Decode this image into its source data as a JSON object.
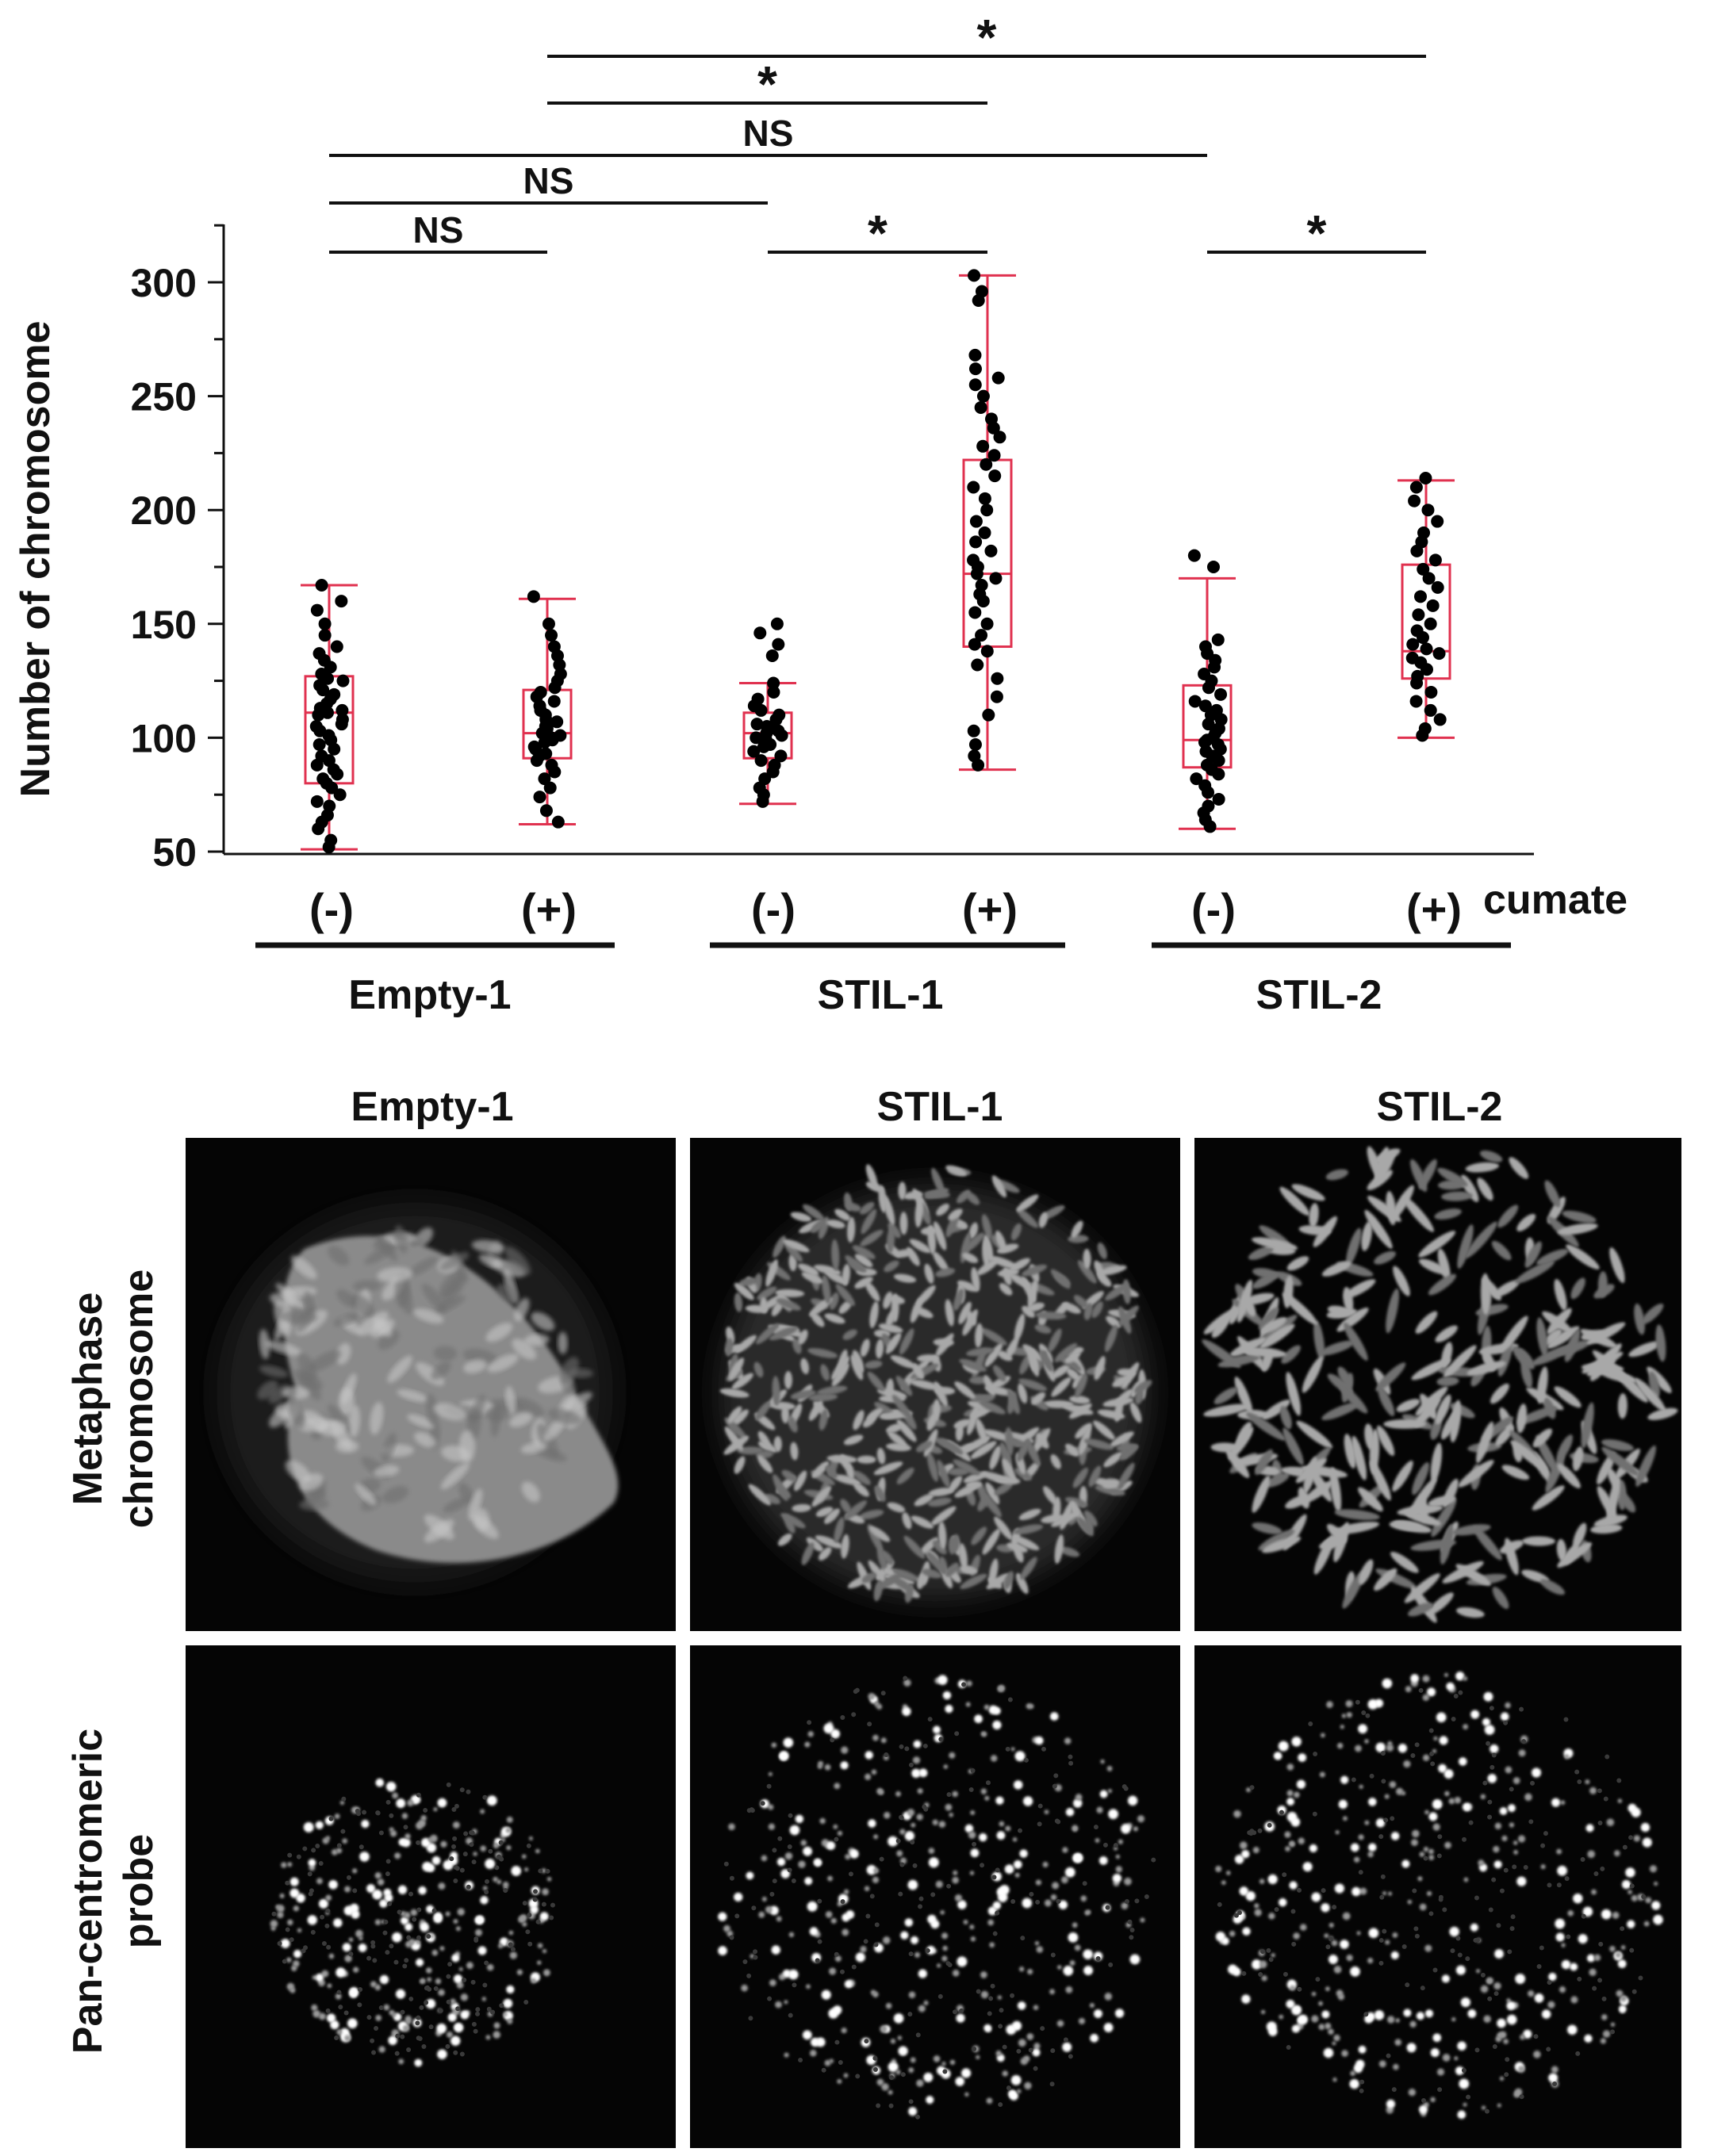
{
  "chart_data": {
    "type": "box",
    "ylabel": "Number of chromosome",
    "ylim": [
      50,
      325
    ],
    "yticks": [
      50,
      100,
      150,
      200,
      250,
      300
    ],
    "grid": false,
    "cumate_label": "cumate",
    "cumate_levels": [
      "(-)",
      "(+)",
      "(-)",
      "(+)",
      "(-)",
      "(+)"
    ],
    "groups": [
      "Empty-1",
      "STIL-1",
      "STIL-2"
    ],
    "box_color": "#e0314f",
    "point_color": "#000000",
    "boxes": [
      {
        "group": "Empty-1",
        "cumate": "(-)",
        "whisker_low": 51,
        "q1": 80,
        "median": 111,
        "q3": 127,
        "whisker_high": 167,
        "points": [
          52,
          55,
          60,
          63,
          66,
          70,
          72,
          75,
          78,
          80,
          82,
          84,
          86,
          88,
          90,
          92,
          95,
          97,
          99,
          101,
          103,
          105,
          106,
          108,
          110,
          111,
          112,
          113,
          115,
          117,
          119,
          121,
          123,
          125,
          126,
          128,
          131,
          134,
          137,
          140,
          145,
          150,
          156,
          160,
          167
        ]
      },
      {
        "group": "Empty-1",
        "cumate": "(+)",
        "whisker_low": 62,
        "q1": 91,
        "median": 102,
        "q3": 121,
        "whisker_high": 161,
        "points": [
          63,
          68,
          74,
          78,
          82,
          85,
          88,
          90,
          92,
          93,
          95,
          96,
          98,
          99,
          100,
          101,
          102,
          103,
          104,
          105,
          107,
          108,
          110,
          112,
          114,
          116,
          118,
          120,
          122,
          125,
          128,
          132,
          136,
          140,
          145,
          150,
          162
        ]
      },
      {
        "group": "STIL-1",
        "cumate": "(-)",
        "whisker_low": 71,
        "q1": 91,
        "median": 102,
        "q3": 111,
        "whisker_high": 124,
        "points": [
          72,
          75,
          78,
          82,
          85,
          88,
          90,
          92,
          94,
          96,
          97,
          99,
          100,
          101,
          102,
          103,
          104,
          105,
          106,
          108,
          110,
          112,
          114,
          117,
          120,
          124,
          136,
          141,
          146,
          150
        ]
      },
      {
        "group": "STIL-1",
        "cumate": "(+)",
        "whisker_low": 86,
        "q1": 140,
        "median": 172,
        "q3": 222,
        "whisker_high": 303,
        "points": [
          88,
          92,
          97,
          103,
          110,
          118,
          126,
          132,
          138,
          141,
          145,
          150,
          155,
          160,
          163,
          167,
          170,
          172,
          175,
          178,
          182,
          186,
          190,
          195,
          200,
          205,
          210,
          215,
          220,
          224,
          228,
          232,
          236,
          240,
          245,
          250,
          255,
          258,
          262,
          268,
          292,
          296,
          303
        ]
      },
      {
        "group": "STIL-2",
        "cumate": "(-)",
        "whisker_low": 60,
        "q1": 87,
        "median": 99,
        "q3": 123,
        "whisker_high": 170,
        "points": [
          61,
          64,
          67,
          70,
          73,
          76,
          79,
          82,
          84,
          86,
          88,
          90,
          92,
          94,
          95,
          97,
          98,
          99,
          100,
          102,
          104,
          106,
          108,
          110,
          112,
          114,
          116,
          119,
          122,
          125,
          128,
          131,
          134,
          137,
          140,
          143,
          175,
          180
        ]
      },
      {
        "group": "STIL-2",
        "cumate": "(+)",
        "whisker_low": 100,
        "q1": 126,
        "median": 138,
        "q3": 176,
        "whisker_high": 213,
        "points": [
          101,
          104,
          108,
          112,
          116,
          120,
          124,
          127,
          130,
          133,
          135,
          137,
          139,
          141,
          144,
          147,
          150,
          154,
          158,
          162,
          166,
          170,
          174,
          178,
          182,
          186,
          190,
          195,
          200,
          204,
          210,
          214
        ]
      }
    ],
    "comparisons": [
      {
        "a": 0,
        "b": 1,
        "label": "NS"
      },
      {
        "a": 0,
        "b": 2,
        "label": "NS"
      },
      {
        "a": 0,
        "b": 4,
        "label": "NS"
      },
      {
        "a": 1,
        "b": 3,
        "label": "*"
      },
      {
        "a": 1,
        "b": 5,
        "label": "*"
      },
      {
        "a": 2,
        "b": 3,
        "label": "*"
      },
      {
        "a": 4,
        "b": 5,
        "label": "*"
      }
    ]
  },
  "images": {
    "column_titles": [
      "Empty-1",
      "STIL-1",
      "STIL-2"
    ],
    "row_labels": [
      {
        "line1": "Metaphase",
        "line2": "chromosome"
      },
      {
        "line1": "Pan-centromeric",
        "line2": "probe"
      }
    ]
  }
}
